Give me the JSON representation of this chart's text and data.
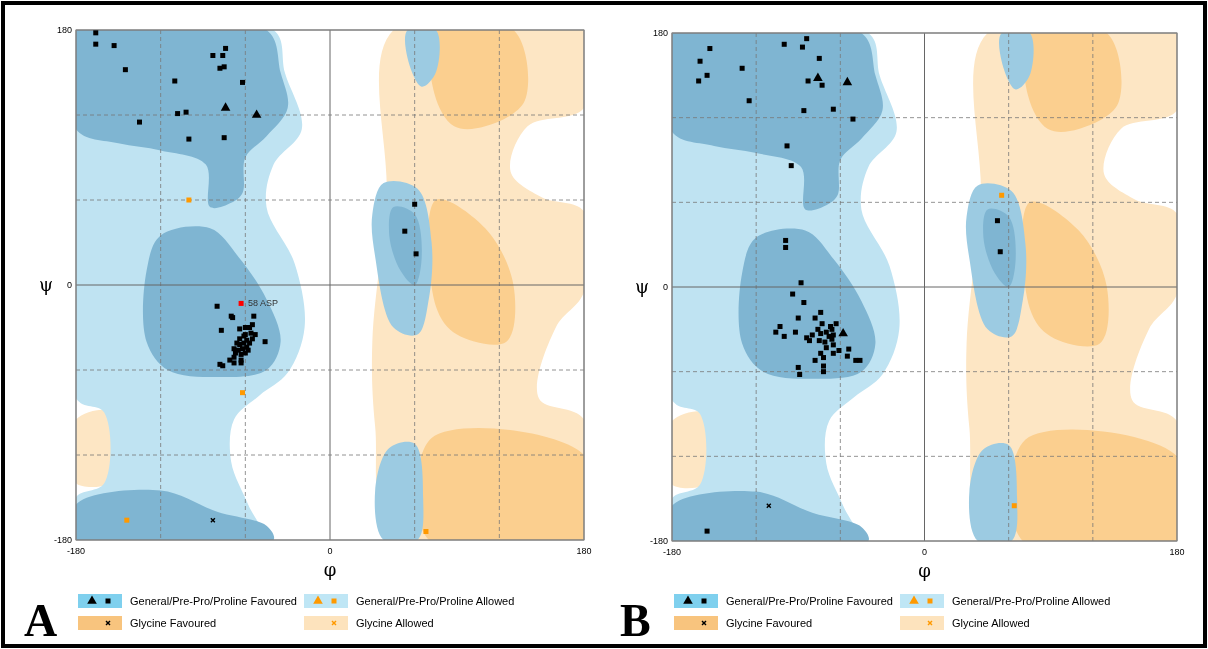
{
  "chart_data": [
    {
      "type": "scatter",
      "xlabel": "φ",
      "ylabel": "ψ",
      "xlim": [
        -180,
        180
      ],
      "ylim": [
        -180,
        180
      ],
      "xticks": [
        -180,
        {
          "value": -120,
          "label": null
        },
        {
          "value": -60,
          "label": null
        },
        0,
        {
          "value": 60,
          "label": null
        },
        {
          "value": 120,
          "label": null
        },
        180
      ],
      "yticks": [
        -180,
        {
          "value": -120,
          "label": null
        },
        {
          "value": -60,
          "label": null
        },
        0,
        {
          "value": 60,
          "label": null
        },
        {
          "value": 120,
          "label": null
        },
        180
      ],
      "grid": true,
      "legend": "bottom",
      "annotations": [
        "A",
        {
          "text": "58 ASP",
          "x": -63,
          "y": -13
        }
      ],
      "series": [
        {
          "name": "General/Pre-Pro/Proline Favoured",
          "color": "#000000",
          "marker": "square",
          "x": [
            -166,
            -166,
            -153,
            -145,
            -83,
            -76,
            -74,
            -78,
            -75,
            -110,
            -62,
            -108,
            -102,
            -135,
            -100,
            -75,
            -80,
            -70,
            -69,
            -54,
            -77,
            -64,
            -60,
            -57,
            -55,
            -53,
            -46,
            -66,
            -64,
            -61,
            -59,
            -68,
            -65,
            -62,
            -59,
            -57,
            -55,
            -67,
            -63,
            -60,
            -58,
            -68,
            -63,
            -63,
            -71,
            -68,
            -78,
            -76,
            -60,
            -56,
            -64,
            -61,
            60,
            53,
            61
          ],
          "values": [
            178,
            170,
            169,
            152,
            162,
            162,
            167,
            153,
            154,
            144,
            143,
            121,
            122,
            115,
            103,
            104,
            -15,
            -22,
            -23,
            -22,
            -32,
            -31,
            -30,
            -30,
            -28,
            -35,
            -40,
            -41,
            -38,
            -36,
            -39,
            -45,
            -46,
            -45,
            -44,
            -41,
            -38,
            -48,
            -49,
            -48,
            -46,
            -51,
            -53,
            -55,
            -53,
            -55,
            -56,
            -57,
            -35,
            -34,
            -42,
            -41,
            57,
            38,
            22
          ]
        },
        {
          "color": "#000000",
          "marker": "triangle",
          "x": [
            -74,
            -52
          ],
          "values": [
            125,
            120
          ]
        },
        {
          "name": "General/Pre-Pro/Proline Allowed",
          "color": "#ff9900",
          "marker": "square",
          "x": [
            -100,
            -62,
            -144,
            68
          ],
          "values": [
            60,
            -76,
            -166,
            -174
          ]
        },
        {
          "name": "Glycine Favoured",
          "color": "#000000",
          "marker": "cross",
          "x": [
            -83
          ],
          "values": [
            -166
          ]
        },
        {
          "name": "Glycine Allowed",
          "color": "#ff9900",
          "marker": "cross"
        },
        {
          "color": "#ff0000",
          "marker": "square",
          "x": [
            -63
          ],
          "values": [
            -13
          ]
        }
      ]
    },
    {
      "type": "scatter",
      "xlabel": "φ",
      "ylabel": "ψ",
      "xlim": [
        -180,
        180
      ],
      "ylim": [
        -180,
        180
      ],
      "xticks": [
        -180,
        {
          "value": -120,
          "label": null
        },
        {
          "value": -60,
          "label": null
        },
        0,
        {
          "value": 60,
          "label": null
        },
        {
          "value": 120,
          "label": null
        },
        180
      ],
      "yticks": [
        -180,
        {
          "value": -120,
          "label": null
        },
        {
          "value": -60,
          "label": null
        },
        0,
        {
          "value": 60,
          "label": null
        },
        {
          "value": 120,
          "label": null
        },
        180
      ],
      "grid": true,
      "legend": "bottom",
      "annotations": [
        "B"
      ],
      "series": [
        {
          "name": "General/Pre-Pro/Proline Favoured",
          "color": "#000000",
          "marker": "square",
          "x": [
            -84,
            -100,
            -87,
            -153,
            -160,
            -75,
            -130,
            -155,
            -161,
            -83,
            -73,
            -125,
            -86,
            -65,
            -51,
            -98,
            -95,
            -99,
            -99,
            -88,
            -94,
            -86,
            -90,
            -103,
            -106,
            -100,
            -92,
            -74,
            -78,
            -73,
            -63,
            -84,
            -82,
            -80,
            -76,
            -74,
            -70,
            -66,
            -65,
            -66,
            -65,
            -71,
            -75,
            -70,
            -65,
            -61,
            -54,
            -55,
            -49,
            -46,
            -74,
            -72,
            -78,
            -72,
            -72,
            -90,
            -89,
            -68,
            -67,
            52,
            54,
            -155
          ],
          "values": [
            176,
            172,
            170,
            169,
            160,
            162,
            155,
            150,
            146,
            146,
            143,
            132,
            125,
            126,
            119,
            100,
            86,
            33,
            28,
            3,
            -5,
            -11,
            -22,
            -28,
            -32,
            -35,
            -32,
            -18,
            -22,
            -26,
            -26,
            -36,
            -38,
            -34,
            -30,
            -33,
            -32,
            -30,
            -34,
            -37,
            -41,
            -39,
            -38,
            -43,
            -47,
            -45,
            -44,
            -49,
            -52,
            -52,
            -47,
            -50,
            -52,
            -56,
            -60,
            -57,
            -62,
            -35,
            -28,
            47,
            25,
            -173
          ]
        },
        {
          "color": "#000000",
          "marker": "triangle",
          "x": [
            -76,
            -55,
            -58
          ],
          "values": [
            148,
            145,
            -33
          ]
        },
        {
          "name": "General/Pre-Pro/Proline Allowed",
          "color": "#ff9900",
          "marker": "square",
          "x": [
            55,
            64
          ],
          "values": [
            65,
            -155
          ]
        },
        {
          "name": "Glycine Favoured",
          "color": "#000000",
          "marker": "cross",
          "x": [
            -111
          ],
          "values": [
            -155
          ]
        },
        {
          "name": "Glycine Allowed",
          "color": "#ff9900",
          "marker": "cross"
        }
      ]
    }
  ]
}
